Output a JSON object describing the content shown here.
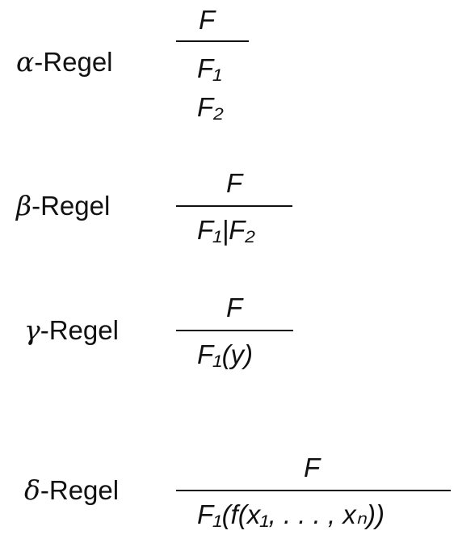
{
  "rules": [
    {
      "symbol": "α",
      "label": "-Regel",
      "numerator": "F",
      "denominator_lines": [
        "F₁",
        "F₂"
      ]
    },
    {
      "symbol": "β",
      "label": "-Regel",
      "numerator": "F",
      "denominator": "F₁|F₂"
    },
    {
      "symbol": "γ",
      "label": "-Regel",
      "numerator": "F",
      "denominator": "F₁(y)"
    },
    {
      "symbol": "δ",
      "label": "-Regel",
      "numerator": "F",
      "denominator": "F₁(f(x₁, . . . , xₙ))"
    }
  ]
}
